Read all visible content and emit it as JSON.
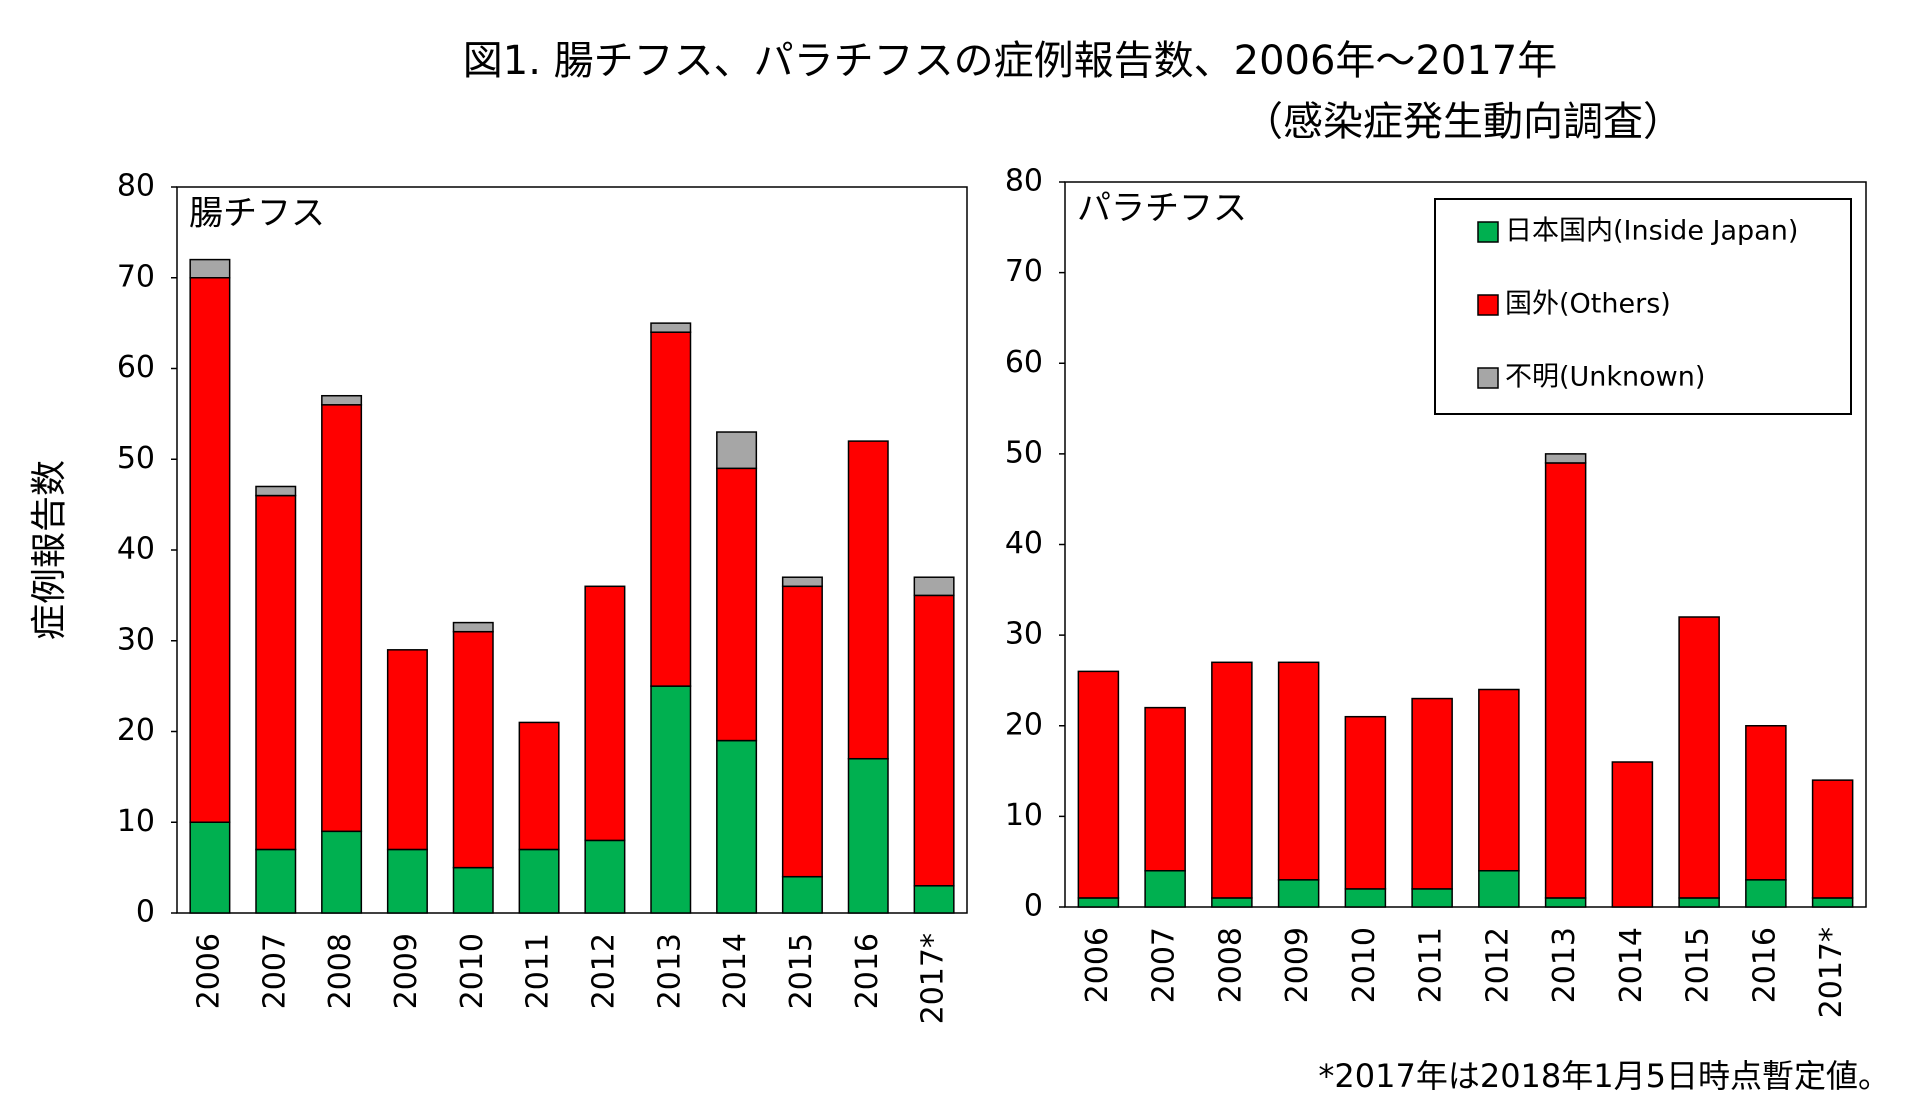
{
  "title": "図1. 腸チフス、パラチフスの症例報告数、2006年～2017年",
  "subtitle": "（感染症発生動向調査）",
  "footnote": "*2017年は2018年1月5日時点暫定値。",
  "chart_data": [
    {
      "type": "stacked_bar",
      "title": "腸チフス",
      "y_label": "症例報告数",
      "categories": [
        "2006",
        "2007",
        "2008",
        "2009",
        "2010",
        "2011",
        "2012",
        "2013",
        "2014",
        "2015",
        "2016",
        "2017*"
      ],
      "series": [
        {
          "color": "#00b050",
          "values": [
            10,
            7,
            9,
            7,
            5,
            7,
            8,
            25,
            19,
            4,
            17,
            3
          ]
        },
        {
          "color": "#ff0000",
          "values": [
            60,
            39,
            47,
            22,
            26,
            14,
            28,
            39,
            30,
            32,
            35,
            32
          ]
        },
        {
          "color": "#a6a6a6",
          "values": [
            2,
            1,
            1,
            0,
            1,
            0,
            0,
            1,
            4,
            1,
            0,
            2
          ]
        }
      ],
      "ylim": [
        0,
        80
      ],
      "yticks": [
        0,
        10,
        20,
        30,
        40,
        50,
        60,
        70,
        80
      ]
    },
    {
      "type": "stacked_bar",
      "title": "パラチフス",
      "legend": "top-right",
      "categories": [
        "2006",
        "2007",
        "2008",
        "2009",
        "2010",
        "2011",
        "2012",
        "2013",
        "2014",
        "2015",
        "2016",
        "2017*"
      ],
      "series": [
        {
          "name": "日本国内(Inside Japan)",
          "color": "#00b050",
          "values": [
            1,
            4,
            1,
            3,
            2,
            2,
            4,
            1,
            0,
            1,
            3,
            1
          ]
        },
        {
          "name": "国外(Others)",
          "color": "#ff0000",
          "values": [
            25,
            18,
            26,
            24,
            19,
            21,
            20,
            48,
            16,
            31,
            17,
            13
          ]
        },
        {
          "name": "不明(Unknown)",
          "color": "#a6a6a6",
          "values": [
            0,
            0,
            0,
            0,
            0,
            0,
            0,
            1,
            0,
            0,
            0,
            0
          ]
        }
      ],
      "ylim": [
        0,
        80
      ],
      "yticks": [
        0,
        10,
        20,
        30,
        40,
        50,
        60,
        70,
        80
      ]
    }
  ]
}
